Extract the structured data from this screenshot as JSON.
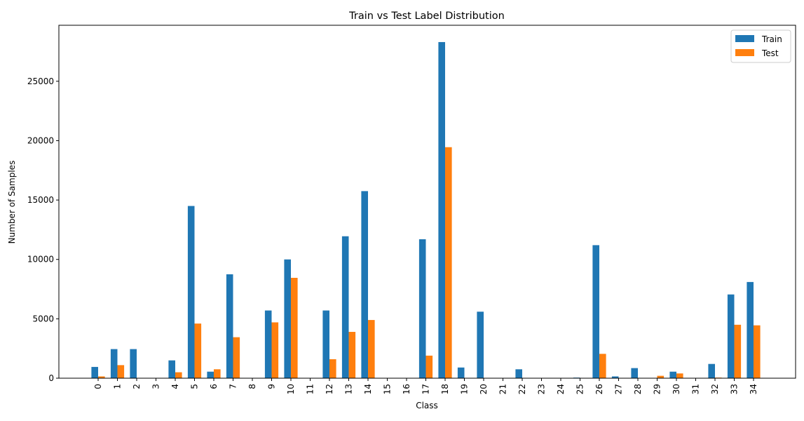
{
  "chart_data": {
    "type": "bar",
    "title": "Train vs Test Label Distribution",
    "xlabel": "Class",
    "ylabel": "Number of Samples",
    "categories": [
      "0",
      "1",
      "2",
      "3",
      "4",
      "5",
      "6",
      "7",
      "8",
      "9",
      "10",
      "11",
      "12",
      "13",
      "14",
      "15",
      "16",
      "17",
      "18",
      "19",
      "20",
      "21",
      "22",
      "23",
      "24",
      "25",
      "26",
      "27",
      "28",
      "29",
      "30",
      "31",
      "32",
      "33",
      "34"
    ],
    "series": [
      {
        "name": "Train",
        "color": "#1f77b4",
        "values": [
          950,
          2450,
          2450,
          0,
          1500,
          14500,
          550,
          8750,
          0,
          5700,
          10000,
          0,
          5700,
          11950,
          15750,
          0,
          0,
          11700,
          28300,
          900,
          5600,
          0,
          750,
          0,
          0,
          50,
          11200,
          150,
          850,
          0,
          550,
          0,
          1200,
          7050,
          8100
        ]
      },
      {
        "name": "Test",
        "color": "#ff7f0e",
        "values": [
          150,
          1100,
          0,
          0,
          500,
          4600,
          750,
          3450,
          0,
          4700,
          8450,
          0,
          1600,
          3900,
          4900,
          0,
          0,
          1900,
          19450,
          0,
          0,
          0,
          0,
          0,
          0,
          0,
          2050,
          0,
          0,
          200,
          400,
          0,
          50,
          4500,
          4450
        ]
      }
    ],
    "yticks": [
      0,
      5000,
      10000,
      15000,
      20000,
      25000
    ],
    "ylim": [
      0,
      29715
    ],
    "grid": false,
    "legend_position": "top-right"
  }
}
